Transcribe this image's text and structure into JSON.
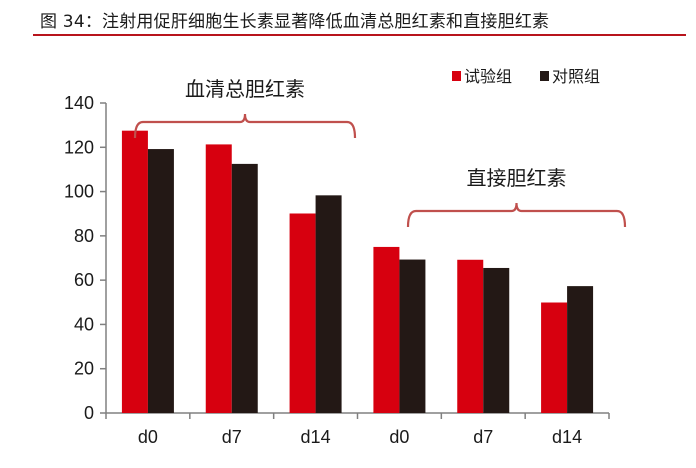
{
  "figure": {
    "title": "图 34：注射用促肝细胞生长素显著降低血清总胆红素和直接胆红素",
    "rule_color": "#b8141c"
  },
  "chart_data": {
    "type": "bar",
    "title": "图 34：注射用促肝细胞生长素显著降低血清总胆红素和直接胆红素",
    "xlabel": "",
    "ylabel": "",
    "ylim": [
      0,
      140
    ],
    "yticks": [
      0,
      20,
      40,
      60,
      80,
      100,
      120,
      140
    ],
    "grid": false,
    "legend_position": "top-right",
    "categories": [
      "d0",
      "d7",
      "d14",
      "d0",
      "d7",
      "d14"
    ],
    "groups": [
      {
        "label": "血清总胆红素",
        "categories": [
          "d0",
          "d7",
          "d14"
        ]
      },
      {
        "label": "直接胆红素",
        "categories": [
          "d0",
          "d7",
          "d14"
        ]
      }
    ],
    "series": [
      {
        "name": "试验组",
        "color": "#d7000f",
        "values": [
          127.5,
          121.3,
          90.1,
          75.0,
          69.2,
          49.9
        ]
      },
      {
        "name": "对照组",
        "color": "#231815",
        "values": [
          119.2,
          112.5,
          98.3,
          69.3,
          65.5,
          57.3
        ]
      }
    ]
  },
  "legend": {
    "items": [
      {
        "label": "试验组",
        "color": "#d7000f"
      },
      {
        "label": "对照组",
        "color": "#231815"
      }
    ]
  },
  "annotations": {
    "bracket_color": "#c0504d",
    "group1_label": "血清总胆红素",
    "group2_label": "直接胆红素"
  }
}
